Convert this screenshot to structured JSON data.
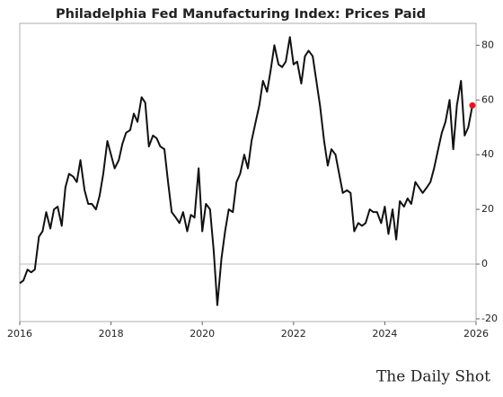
{
  "chart_data": {
    "type": "line",
    "title": "Philadelphia Fed Manufacturing Index: Prices Paid",
    "watermark": "The Daily Shot",
    "x": [
      2016.0,
      2016.08,
      2016.17,
      2016.25,
      2016.33,
      2016.42,
      2016.5,
      2016.58,
      2016.67,
      2016.75,
      2016.83,
      2016.92,
      2017.0,
      2017.08,
      2017.17,
      2017.25,
      2017.33,
      2017.42,
      2017.5,
      2017.58,
      2017.67,
      2017.75,
      2017.83,
      2017.92,
      2018.0,
      2018.08,
      2018.17,
      2018.25,
      2018.33,
      2018.42,
      2018.5,
      2018.58,
      2018.67,
      2018.75,
      2018.83,
      2018.92,
      2019.0,
      2019.08,
      2019.17,
      2019.25,
      2019.33,
      2019.42,
      2019.5,
      2019.58,
      2019.67,
      2019.75,
      2019.83,
      2019.92,
      2020.0,
      2020.08,
      2020.17,
      2020.25,
      2020.33,
      2020.42,
      2020.5,
      2020.58,
      2020.67,
      2020.75,
      2020.83,
      2020.92,
      2021.0,
      2021.08,
      2021.17,
      2021.25,
      2021.33,
      2021.42,
      2021.5,
      2021.58,
      2021.67,
      2021.75,
      2021.83,
      2021.92,
      2022.0,
      2022.08,
      2022.17,
      2022.25,
      2022.33,
      2022.42,
      2022.5,
      2022.58,
      2022.67,
      2022.75,
      2022.83,
      2022.92,
      2023.0,
      2023.08,
      2023.17,
      2023.25,
      2023.33,
      2023.42,
      2023.5,
      2023.58,
      2023.67,
      2023.75,
      2023.83,
      2023.92,
      2024.0,
      2024.08,
      2024.17,
      2024.25,
      2024.33,
      2024.42,
      2024.5,
      2024.58,
      2024.67,
      2024.75,
      2024.83,
      2024.92,
      2025.0,
      2025.08,
      2025.17,
      2025.25,
      2025.33,
      2025.42,
      2025.5,
      2025.58,
      2025.67,
      2025.75,
      2025.83,
      2025.92
    ],
    "series": [
      {
        "name": "Prices Paid",
        "color": "#111111",
        "values": [
          -7,
          -6,
          -2,
          -3,
          -2,
          10,
          12,
          19,
          13,
          20,
          21,
          14,
          28,
          33,
          32,
          30,
          38,
          27,
          22,
          22,
          20,
          25,
          33,
          45,
          40,
          35,
          38,
          44,
          48,
          49,
          55,
          52,
          61,
          59,
          43,
          47,
          46,
          43,
          42,
          30,
          19,
          17,
          15,
          19,
          12,
          18,
          17,
          35,
          12,
          22,
          20,
          5,
          -15,
          2,
          12,
          20,
          19,
          30,
          33,
          40,
          35,
          45,
          52,
          58,
          67,
          63,
          71,
          80,
          73,
          72,
          74,
          83,
          73,
          74,
          66,
          76,
          78,
          76,
          67,
          58,
          45,
          36,
          42,
          40,
          33,
          26,
          27,
          26,
          12,
          15,
          14,
          15,
          20,
          19,
          19,
          15,
          21,
          11,
          20,
          9,
          23,
          21,
          24,
          22,
          30,
          28,
          26,
          28,
          30,
          35,
          42,
          48,
          52,
          60,
          42,
          58,
          67,
          47,
          50,
          58
        ]
      }
    ],
    "last_point_color": "#e8141c",
    "xlim": [
      2016,
      2026
    ],
    "xticks": [
      2016,
      2018,
      2020,
      2022,
      2024,
      2026
    ],
    "ylim": [
      -21,
      88
    ],
    "yticks": [
      -20,
      0,
      20,
      40,
      60,
      80
    ],
    "zero_line": true
  }
}
